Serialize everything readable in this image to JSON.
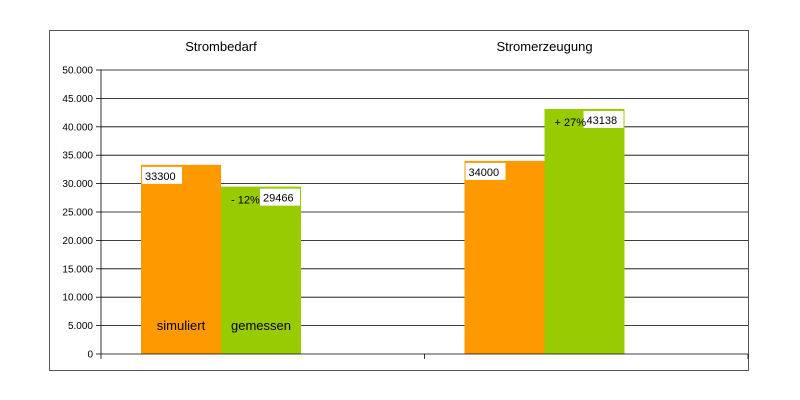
{
  "chart_data": {
    "type": "bar",
    "categories": [
      "Strombedarf",
      "Stromerzeugung"
    ],
    "series": [
      {
        "name": "simuliert",
        "values": [
          33300,
          34000
        ],
        "color": "#ff9900"
      },
      {
        "name": "gemessen",
        "values": [
          29466,
          43138
        ],
        "color": "#99cc00"
      }
    ],
    "data_labels": [
      [
        "33300",
        "34000"
      ],
      [
        "29466",
        "43138"
      ]
    ],
    "annotations": [
      "- 12%",
      "+ 27%"
    ],
    "ylim": [
      0,
      50000
    ],
    "yticks": [
      "0",
      "5.000",
      "10.000",
      "15.000",
      "20.000",
      "25.000",
      "30.000",
      "35.000",
      "40.000",
      "45.000",
      "50.000"
    ],
    "grid": true
  }
}
